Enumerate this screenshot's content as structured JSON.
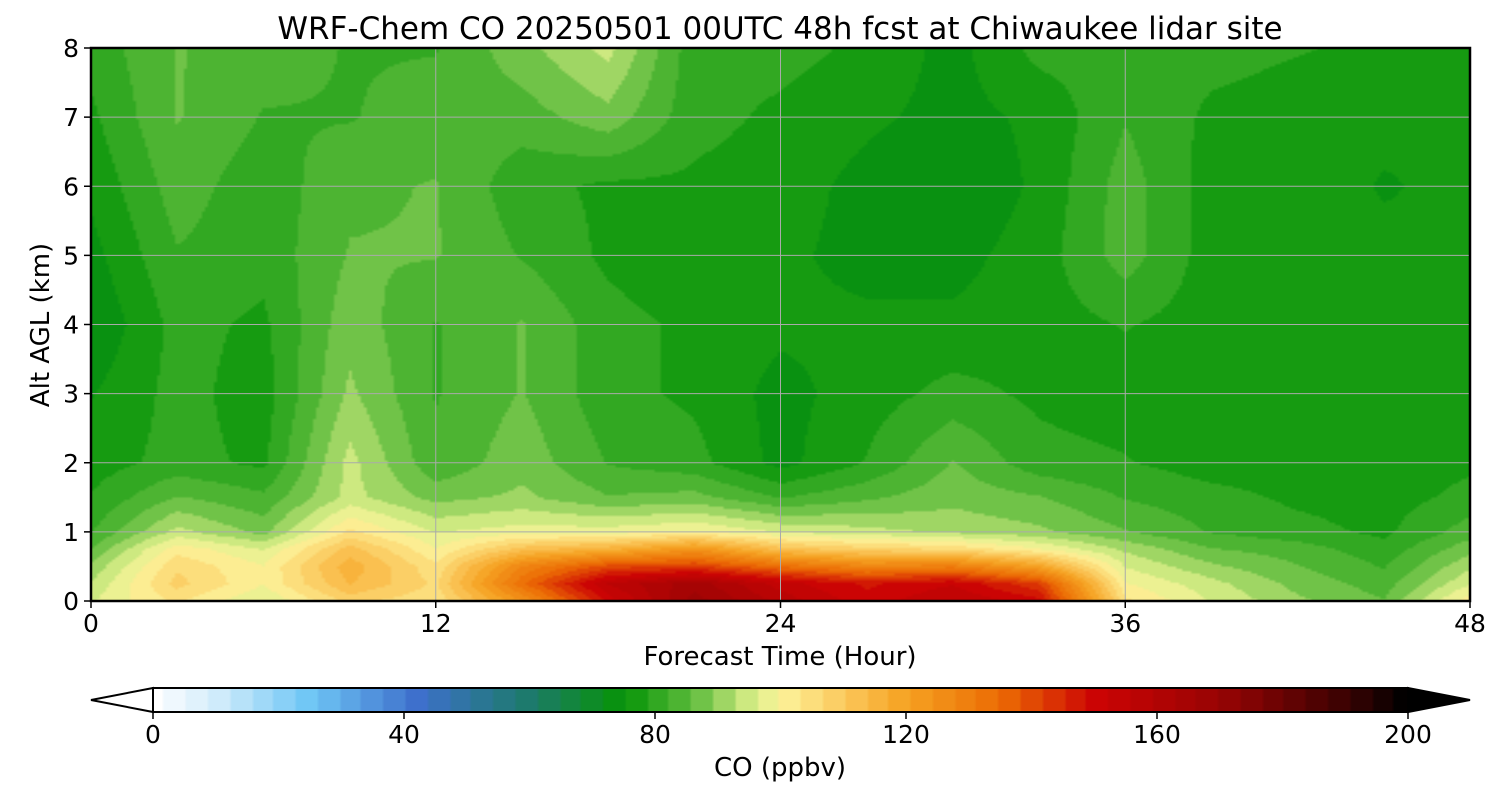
{
  "chart_data": {
    "type": "heatmap",
    "title": "WRF-Chem CO  20250501 00UTC 48h fcst at Chiwaukee lidar site",
    "xlabel": "Forecast Time (Hour)",
    "ylabel": "Alt AGL (km)",
    "xlim": [
      0,
      48
    ],
    "ylim": [
      0,
      8
    ],
    "x_ticks": [
      0,
      12,
      24,
      36,
      48
    ],
    "y_ticks": [
      0,
      1,
      2,
      3,
      4,
      5,
      6,
      7,
      8
    ],
    "grid": true,
    "x": [
      0,
      3,
      6,
      9,
      12,
      15,
      18,
      21,
      24,
      27,
      30,
      33,
      36,
      39,
      42,
      45,
      48
    ],
    "y": [
      0,
      0.25,
      0.5,
      0.75,
      1,
      1.5,
      2,
      3,
      4,
      5,
      6,
      7,
      8
    ],
    "values": [
      [
        96,
        104,
        96,
        108,
        104,
        124,
        150,
        168,
        158,
        150,
        156,
        150,
        104,
        96,
        90,
        86,
        102
      ],
      [
        93,
        108,
        100,
        114,
        106,
        134,
        156,
        165,
        154,
        148,
        152,
        142,
        100,
        94,
        88,
        84,
        96
      ],
      [
        90,
        106,
        100,
        116,
        104,
        128,
        140,
        142,
        134,
        128,
        130,
        120,
        96,
        90,
        86,
        82,
        92
      ],
      [
        86,
        102,
        96,
        112,
        100,
        112,
        116,
        124,
        112,
        108,
        106,
        100,
        92,
        86,
        84,
        80,
        88
      ],
      [
        82,
        94,
        88,
        104,
        96,
        98,
        98,
        100,
        96,
        94,
        92,
        90,
        86,
        82,
        80,
        78,
        84
      ],
      [
        79,
        86,
        83,
        94,
        88,
        90,
        86,
        87,
        82,
        85,
        88,
        86,
        82,
        80,
        78,
        77,
        80
      ],
      [
        77,
        80,
        78,
        94,
        83,
        88,
        82,
        80,
        74,
        79,
        86,
        80,
        79,
        77,
        77,
        76,
        78
      ],
      [
        75,
        80,
        77,
        90,
        82,
        86,
        80,
        78,
        74,
        77,
        80,
        78,
        77,
        76,
        77,
        76,
        76
      ],
      [
        72,
        80,
        78,
        88,
        82,
        86,
        80,
        78,
        76,
        76,
        76,
        77,
        79,
        77,
        78,
        76,
        76
      ],
      [
        74,
        82,
        80,
        86,
        86,
        82,
        78,
        76,
        76,
        74,
        74,
        77,
        84,
        77,
        78,
        76,
        76
      ],
      [
        76,
        84,
        80,
        85,
        86,
        80,
        78,
        78,
        77,
        74,
        72,
        76,
        84,
        77,
        77,
        75,
        76
      ],
      [
        78,
        86,
        82,
        82,
        84,
        84,
        88,
        80,
        78,
        76,
        74,
        76,
        82,
        78,
        77,
        76,
        76
      ],
      [
        80,
        86,
        84,
        82,
        82,
        88,
        94,
        80,
        80,
        78,
        74,
        80,
        80,
        80,
        79,
        78,
        76
      ]
    ],
    "colorbar": {
      "label": "CO  (ppbv)",
      "min": 0,
      "max": 200,
      "ticks": [
        0,
        40,
        80,
        120,
        160,
        200
      ],
      "extend": "both",
      "stops": [
        {
          "value": 0,
          "color": "#ffffff"
        },
        {
          "value": 10,
          "color": "#d2ecfb"
        },
        {
          "value": 25,
          "color": "#6ec6f5"
        },
        {
          "value": 42,
          "color": "#3e70cc"
        },
        {
          "value": 60,
          "color": "#1c7a6a"
        },
        {
          "value": 75,
          "color": "#079407"
        },
        {
          "value": 86,
          "color": "#5cbb3c"
        },
        {
          "value": 95,
          "color": "#d4ec84"
        },
        {
          "value": 100,
          "color": "#fcf49c"
        },
        {
          "value": 110,
          "color": "#fbc85c"
        },
        {
          "value": 120,
          "color": "#f5a222"
        },
        {
          "value": 135,
          "color": "#ec6c04"
        },
        {
          "value": 150,
          "color": "#cc0404"
        },
        {
          "value": 170,
          "color": "#980404"
        },
        {
          "value": 190,
          "color": "#3a0202"
        },
        {
          "value": 200,
          "color": "#000000"
        }
      ]
    }
  }
}
